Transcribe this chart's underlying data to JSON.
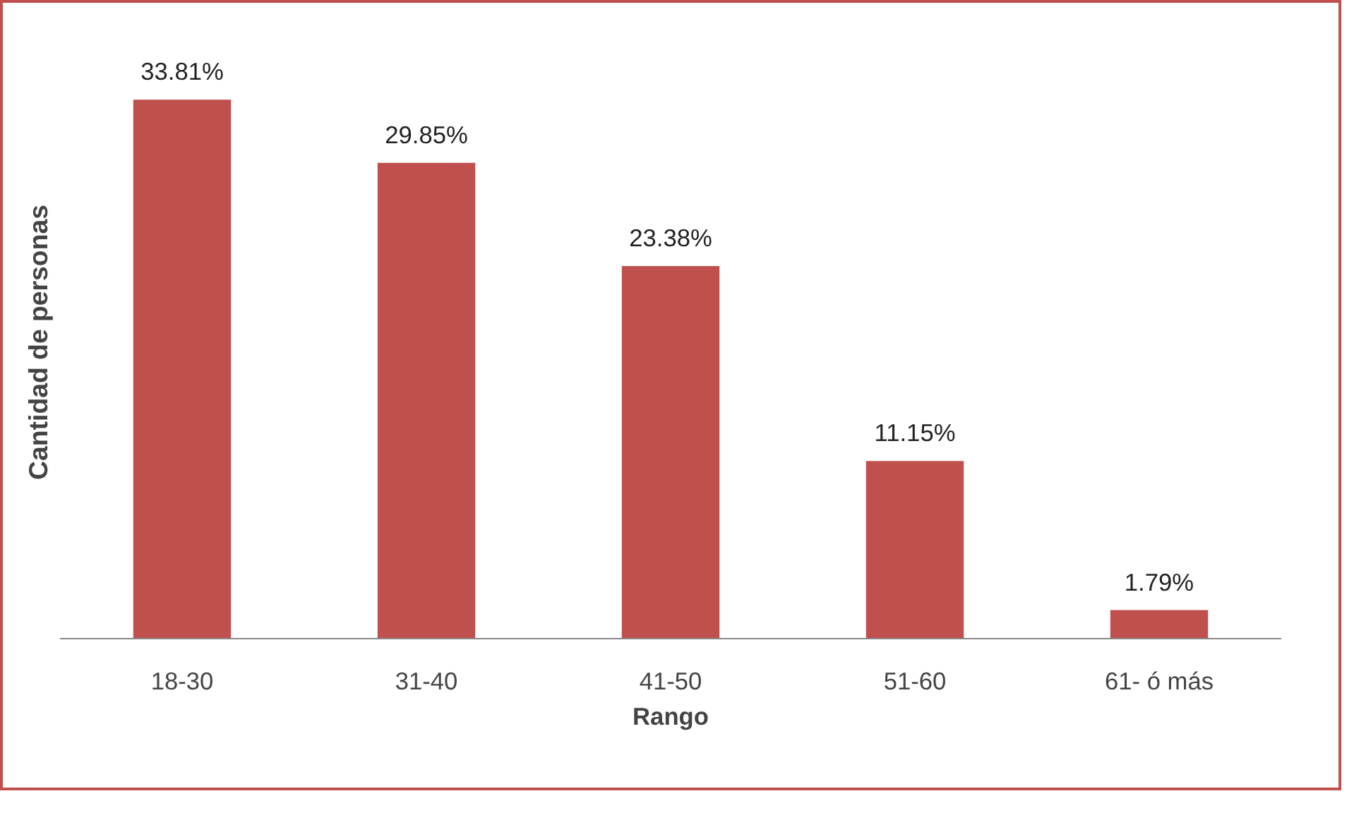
{
  "chart_data": {
    "type": "bar",
    "xlabel": "Rango",
    "ylabel": "Cantidad de personas",
    "categories": [
      "18-30",
      "31-40",
      "41-50",
      "51-60",
      "61- ó más"
    ],
    "values": [
      33.81,
      29.85,
      23.38,
      11.15,
      1.79
    ],
    "value_labels": [
      "33.81%",
      "29.85%",
      "23.38%",
      "11.15%",
      "1.79%"
    ],
    "color": "#c0504d",
    "grid": false
  }
}
